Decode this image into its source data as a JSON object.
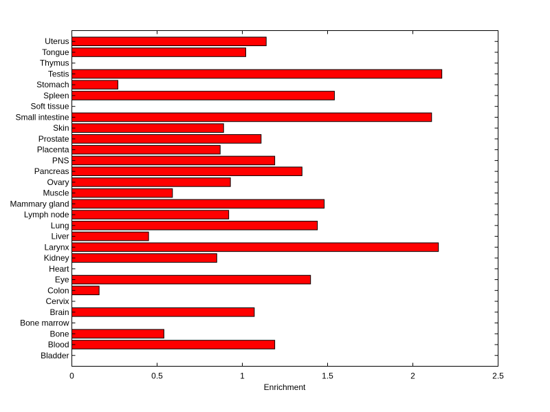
{
  "chart_data": {
    "type": "bar",
    "orientation": "horizontal",
    "title": "",
    "xlabel": "Enrichment",
    "ylabel": "",
    "xlim": [
      0,
      2.5
    ],
    "xticks": [
      0,
      0.5,
      1,
      1.5,
      2,
      2.5
    ],
    "xtick_labels": [
      "0",
      "0.5",
      "1",
      "1.5",
      "2",
      "2.5"
    ],
    "grid": false,
    "bar_color": "#ff0000",
    "categories": [
      "Bladder",
      "Blood",
      "Bone",
      "Bone marrow",
      "Brain",
      "Cervix",
      "Colon",
      "Eye",
      "Heart",
      "Kidney",
      "Larynx",
      "Liver",
      "Lung",
      "Lymph node",
      "Mammary gland",
      "Muscle",
      "Ovary",
      "Pancreas",
      "PNS",
      "Placenta",
      "Prostate",
      "Skin",
      "Small intestine",
      "Soft tissue",
      "Spleen",
      "Stomach",
      "Testis",
      "Thymus",
      "Tongue",
      "Uterus"
    ],
    "values": [
      0,
      1.19,
      0.54,
      0,
      1.07,
      0,
      0.16,
      1.4,
      0,
      0.85,
      2.15,
      0.45,
      1.44,
      0.92,
      1.48,
      0.59,
      0.93,
      1.35,
      1.19,
      0.87,
      1.11,
      0.89,
      2.11,
      0,
      1.54,
      0.27,
      2.17,
      0,
      1.02,
      1.14
    ]
  }
}
